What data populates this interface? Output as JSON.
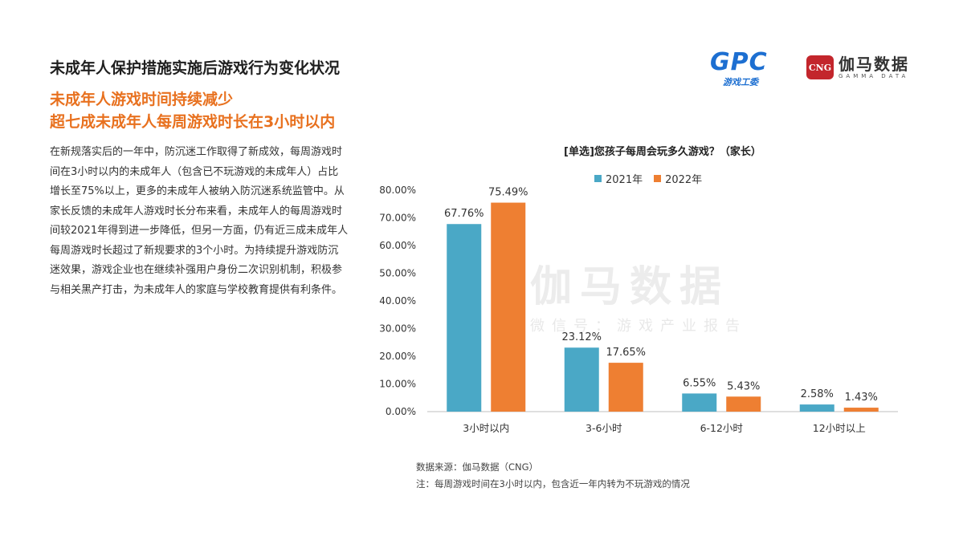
{
  "header": {
    "title": "未成年人保护措施实施后游戏行为变化状况",
    "headline_line1": "未成年人游戏时间持续减少",
    "headline_line2": "超七成未成年人每周游戏时长在3小时以内"
  },
  "body": {
    "paragraph": "在新规落实后的一年中，防沉迷工作取得了新成效，每周游戏时间在3小时以内的未成年人（包含已不玩游戏的未成年人）占比增长至75%以上，更多的未成年人被纳入防沉迷系统监管中。从家长反馈的未成年人游戏时长分布来看，未成年人的每周游戏时间较2021年得到进一步降低，但另一方面，仍有近三成未成年人每周游戏时长超过了新规要求的3个小时。为持续提升游戏防沉迷效果，游戏企业也在继续补强用户身份二次识别机制，积极参与相关黑产打击，为未成年人的家庭与学校教育提供有利条件。"
  },
  "logos": {
    "gpc_mark": "GPC",
    "gpc_sub": "游戏工委",
    "cng_badge": "CNG",
    "cng_name": "伽马数据",
    "cng_en": "GAMMA DATA"
  },
  "watermark": {
    "main": "伽马数据",
    "sub": "微信号：游戏产业报告"
  },
  "footer": {
    "source": "数据来源：伽马数据（CNG）",
    "note": "注：每周游戏时间在3小时以内，包含近一年内转为不玩游戏的情况"
  },
  "colors": {
    "series_2021": "#4aa8c6",
    "series_2022": "#ee7f32",
    "headline": "#e8711f"
  },
  "chart_data": {
    "type": "bar",
    "title": "[单选]您孩子每周会玩多久游戏？（家长）",
    "categories": [
      "3小时以内",
      "3-6小时",
      "6-12小时",
      "12小时以上"
    ],
    "series": [
      {
        "name": "2021年",
        "values": [
          67.76,
          23.12,
          6.55,
          2.58
        ],
        "labels": [
          "67.76%",
          "23.12%",
          "6.55%",
          "2.58%"
        ]
      },
      {
        "name": "2022年",
        "values": [
          75.49,
          17.65,
          5.43,
          1.43
        ],
        "labels": [
          "75.49%",
          "17.65%",
          "5.43%",
          "1.43%"
        ]
      }
    ],
    "y_ticks": [
      "0.00%",
      "10.00%",
      "20.00%",
      "30.00%",
      "40.00%",
      "50.00%",
      "60.00%",
      "70.00%",
      "80.00%"
    ],
    "ylim": [
      0,
      80
    ],
    "legend_position": "top",
    "grid": false
  }
}
